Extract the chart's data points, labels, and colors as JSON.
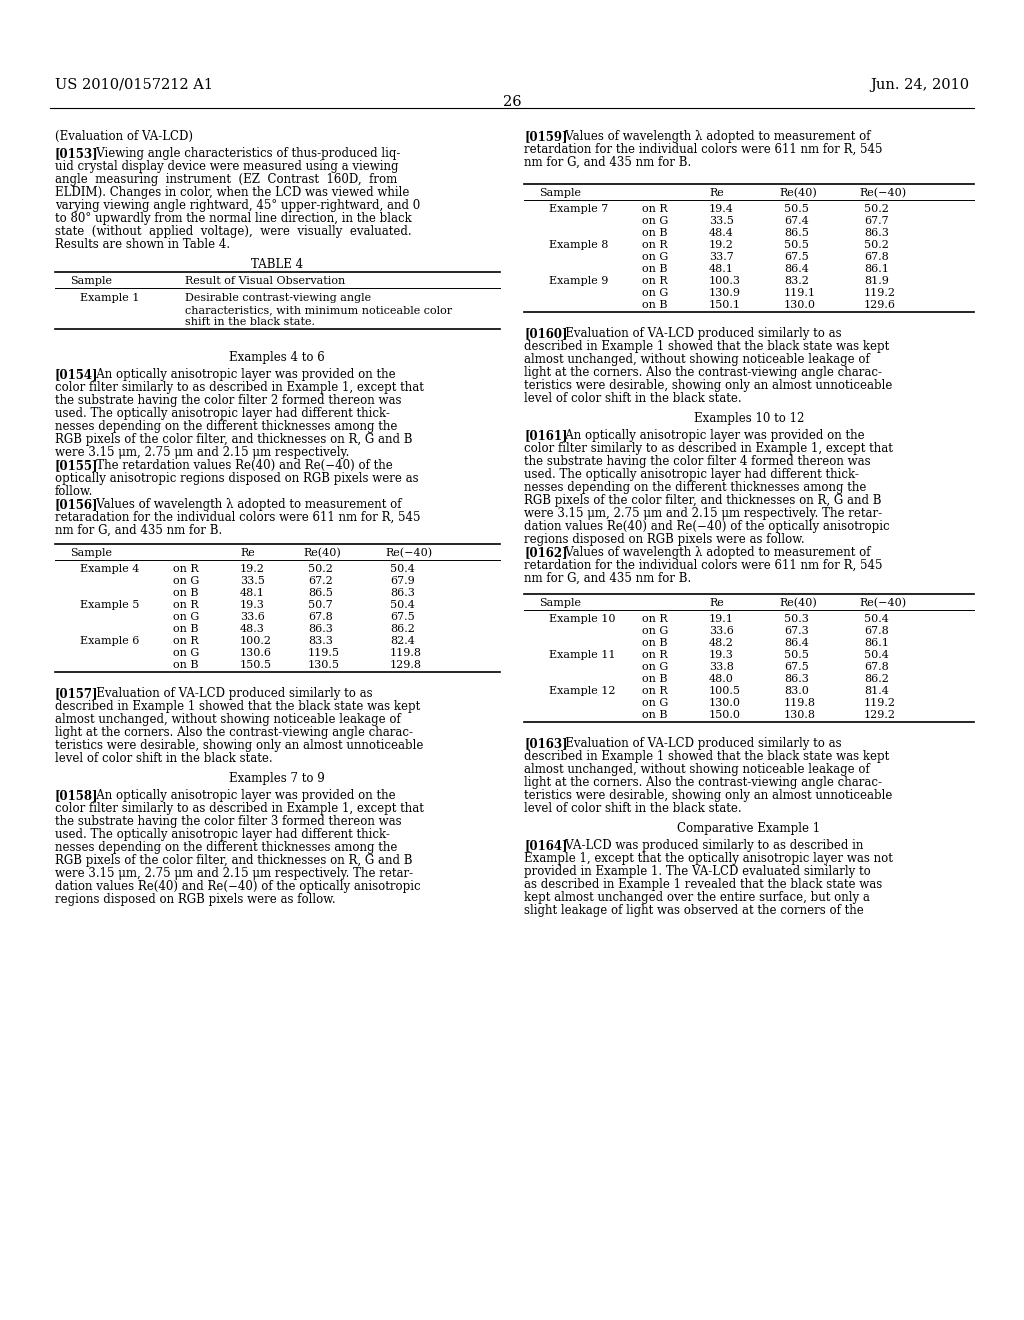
{
  "bg_color": "#ffffff",
  "header_left": "US 2010/0157212 A1",
  "header_right": "Jun. 24, 2010",
  "page_number": "26",
  "table4_title": "TABLE 4",
  "table5_rows": [
    [
      "Example 4",
      "on R",
      "19.2",
      "50.2",
      "50.4"
    ],
    [
      "",
      "on G",
      "33.5",
      "67.2",
      "67.9"
    ],
    [
      "",
      "on B",
      "48.1",
      "86.5",
      "86.3"
    ],
    [
      "Example 5",
      "on R",
      "19.3",
      "50.7",
      "50.4"
    ],
    [
      "",
      "on G",
      "33.6",
      "67.8",
      "67.5"
    ],
    [
      "",
      "on B",
      "48.3",
      "86.3",
      "86.2"
    ],
    [
      "Example 6",
      "on R",
      "100.2",
      "83.3",
      "82.4"
    ],
    [
      "",
      "on G",
      "130.6",
      "119.5",
      "119.8"
    ],
    [
      "",
      "on B",
      "150.5",
      "130.5",
      "129.8"
    ]
  ],
  "table6_rows": [
    [
      "Example 7",
      "on R",
      "19.4",
      "50.5",
      "50.2"
    ],
    [
      "",
      "on G",
      "33.5",
      "67.4",
      "67.7"
    ],
    [
      "",
      "on B",
      "48.4",
      "86.5",
      "86.3"
    ],
    [
      "Example 8",
      "on R",
      "19.2",
      "50.5",
      "50.2"
    ],
    [
      "",
      "on G",
      "33.7",
      "67.5",
      "67.8"
    ],
    [
      "",
      "on B",
      "48.1",
      "86.4",
      "86.1"
    ],
    [
      "Example 9",
      "on R",
      "100.3",
      "83.2",
      "81.9"
    ],
    [
      "",
      "on G",
      "130.9",
      "119.1",
      "119.2"
    ],
    [
      "",
      "on B",
      "150.1",
      "130.0",
      "129.6"
    ]
  ],
  "table7_rows": [
    [
      "Example 10",
      "on R",
      "19.1",
      "50.3",
      "50.4"
    ],
    [
      "",
      "on G",
      "33.6",
      "67.3",
      "67.8"
    ],
    [
      "",
      "on B",
      "48.2",
      "86.4",
      "86.1"
    ],
    [
      "Example 11",
      "on R",
      "19.3",
      "50.5",
      "50.4"
    ],
    [
      "",
      "on G",
      "33.8",
      "67.5",
      "67.8"
    ],
    [
      "",
      "on B",
      "48.0",
      "86.3",
      "86.2"
    ],
    [
      "Example 12",
      "on R",
      "100.5",
      "83.0",
      "81.4"
    ],
    [
      "",
      "on G",
      "130.0",
      "119.8",
      "119.2"
    ],
    [
      "",
      "on B",
      "150.0",
      "130.8",
      "129.2"
    ]
  ]
}
